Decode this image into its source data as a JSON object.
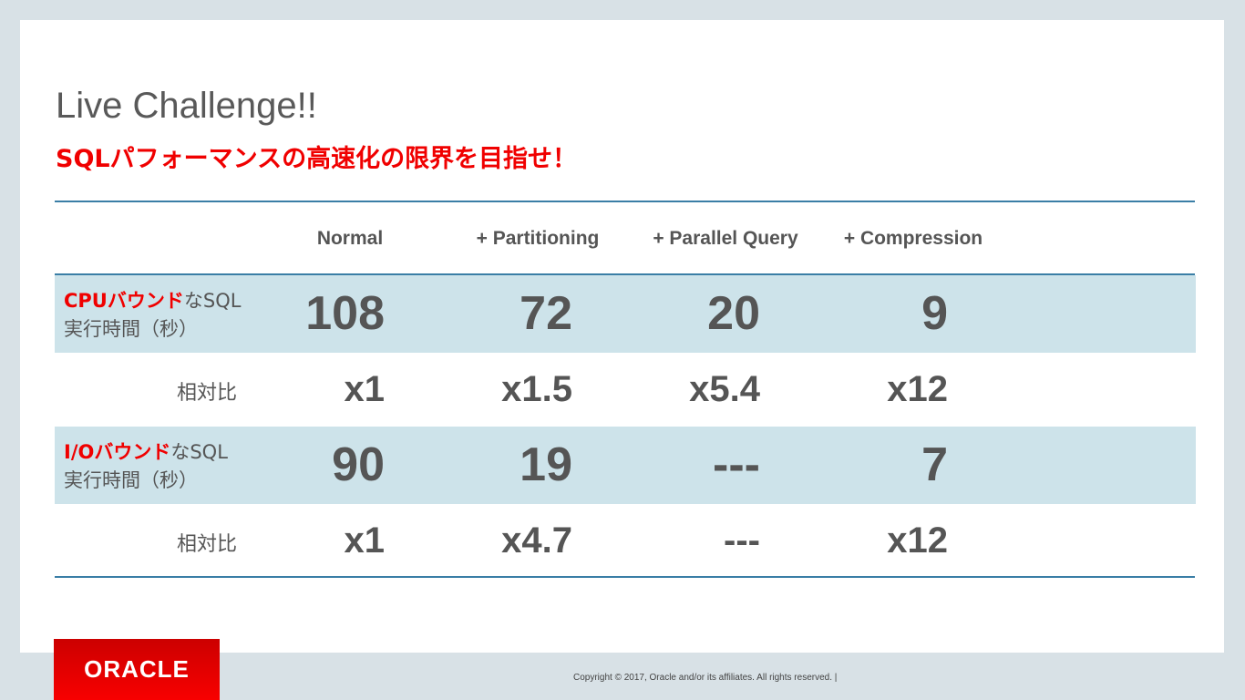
{
  "title": "Live Challenge!!",
  "subtitle": "SQLパフォーマンスの高速化の限界を目指せ！",
  "headers": [
    "Normal",
    "+ Partitioning",
    "+ Parallel Query",
    "+ Compression"
  ],
  "rows": [
    {
      "label_red": "CPUバウンド",
      "label_rest": "なSQL",
      "label_line2": "実行時間（秒）",
      "values": [
        "108",
        "72",
        "20",
        "9"
      ],
      "ratio_label": "相対比",
      "ratios": [
        "x1",
        "x1.5",
        "x5.4",
        "x12"
      ]
    },
    {
      "label_red": "I/Oバウンド",
      "label_rest": "なSQL",
      "label_line2": "実行時間（秒）",
      "values": [
        "90",
        "19",
        "---",
        "7"
      ],
      "ratio_label": "相対比",
      "ratios": [
        "x1",
        "x4.7",
        "---",
        "x12"
      ]
    }
  ],
  "footer": {
    "logo": "ORACLE",
    "copyright": "Copyright © 2017, Oracle and/or its affiliates. All rights reserved.  |"
  },
  "colors": {
    "accent_red": "#f00000",
    "band": "#cde3ea",
    "rule": "#3a7ea6"
  }
}
